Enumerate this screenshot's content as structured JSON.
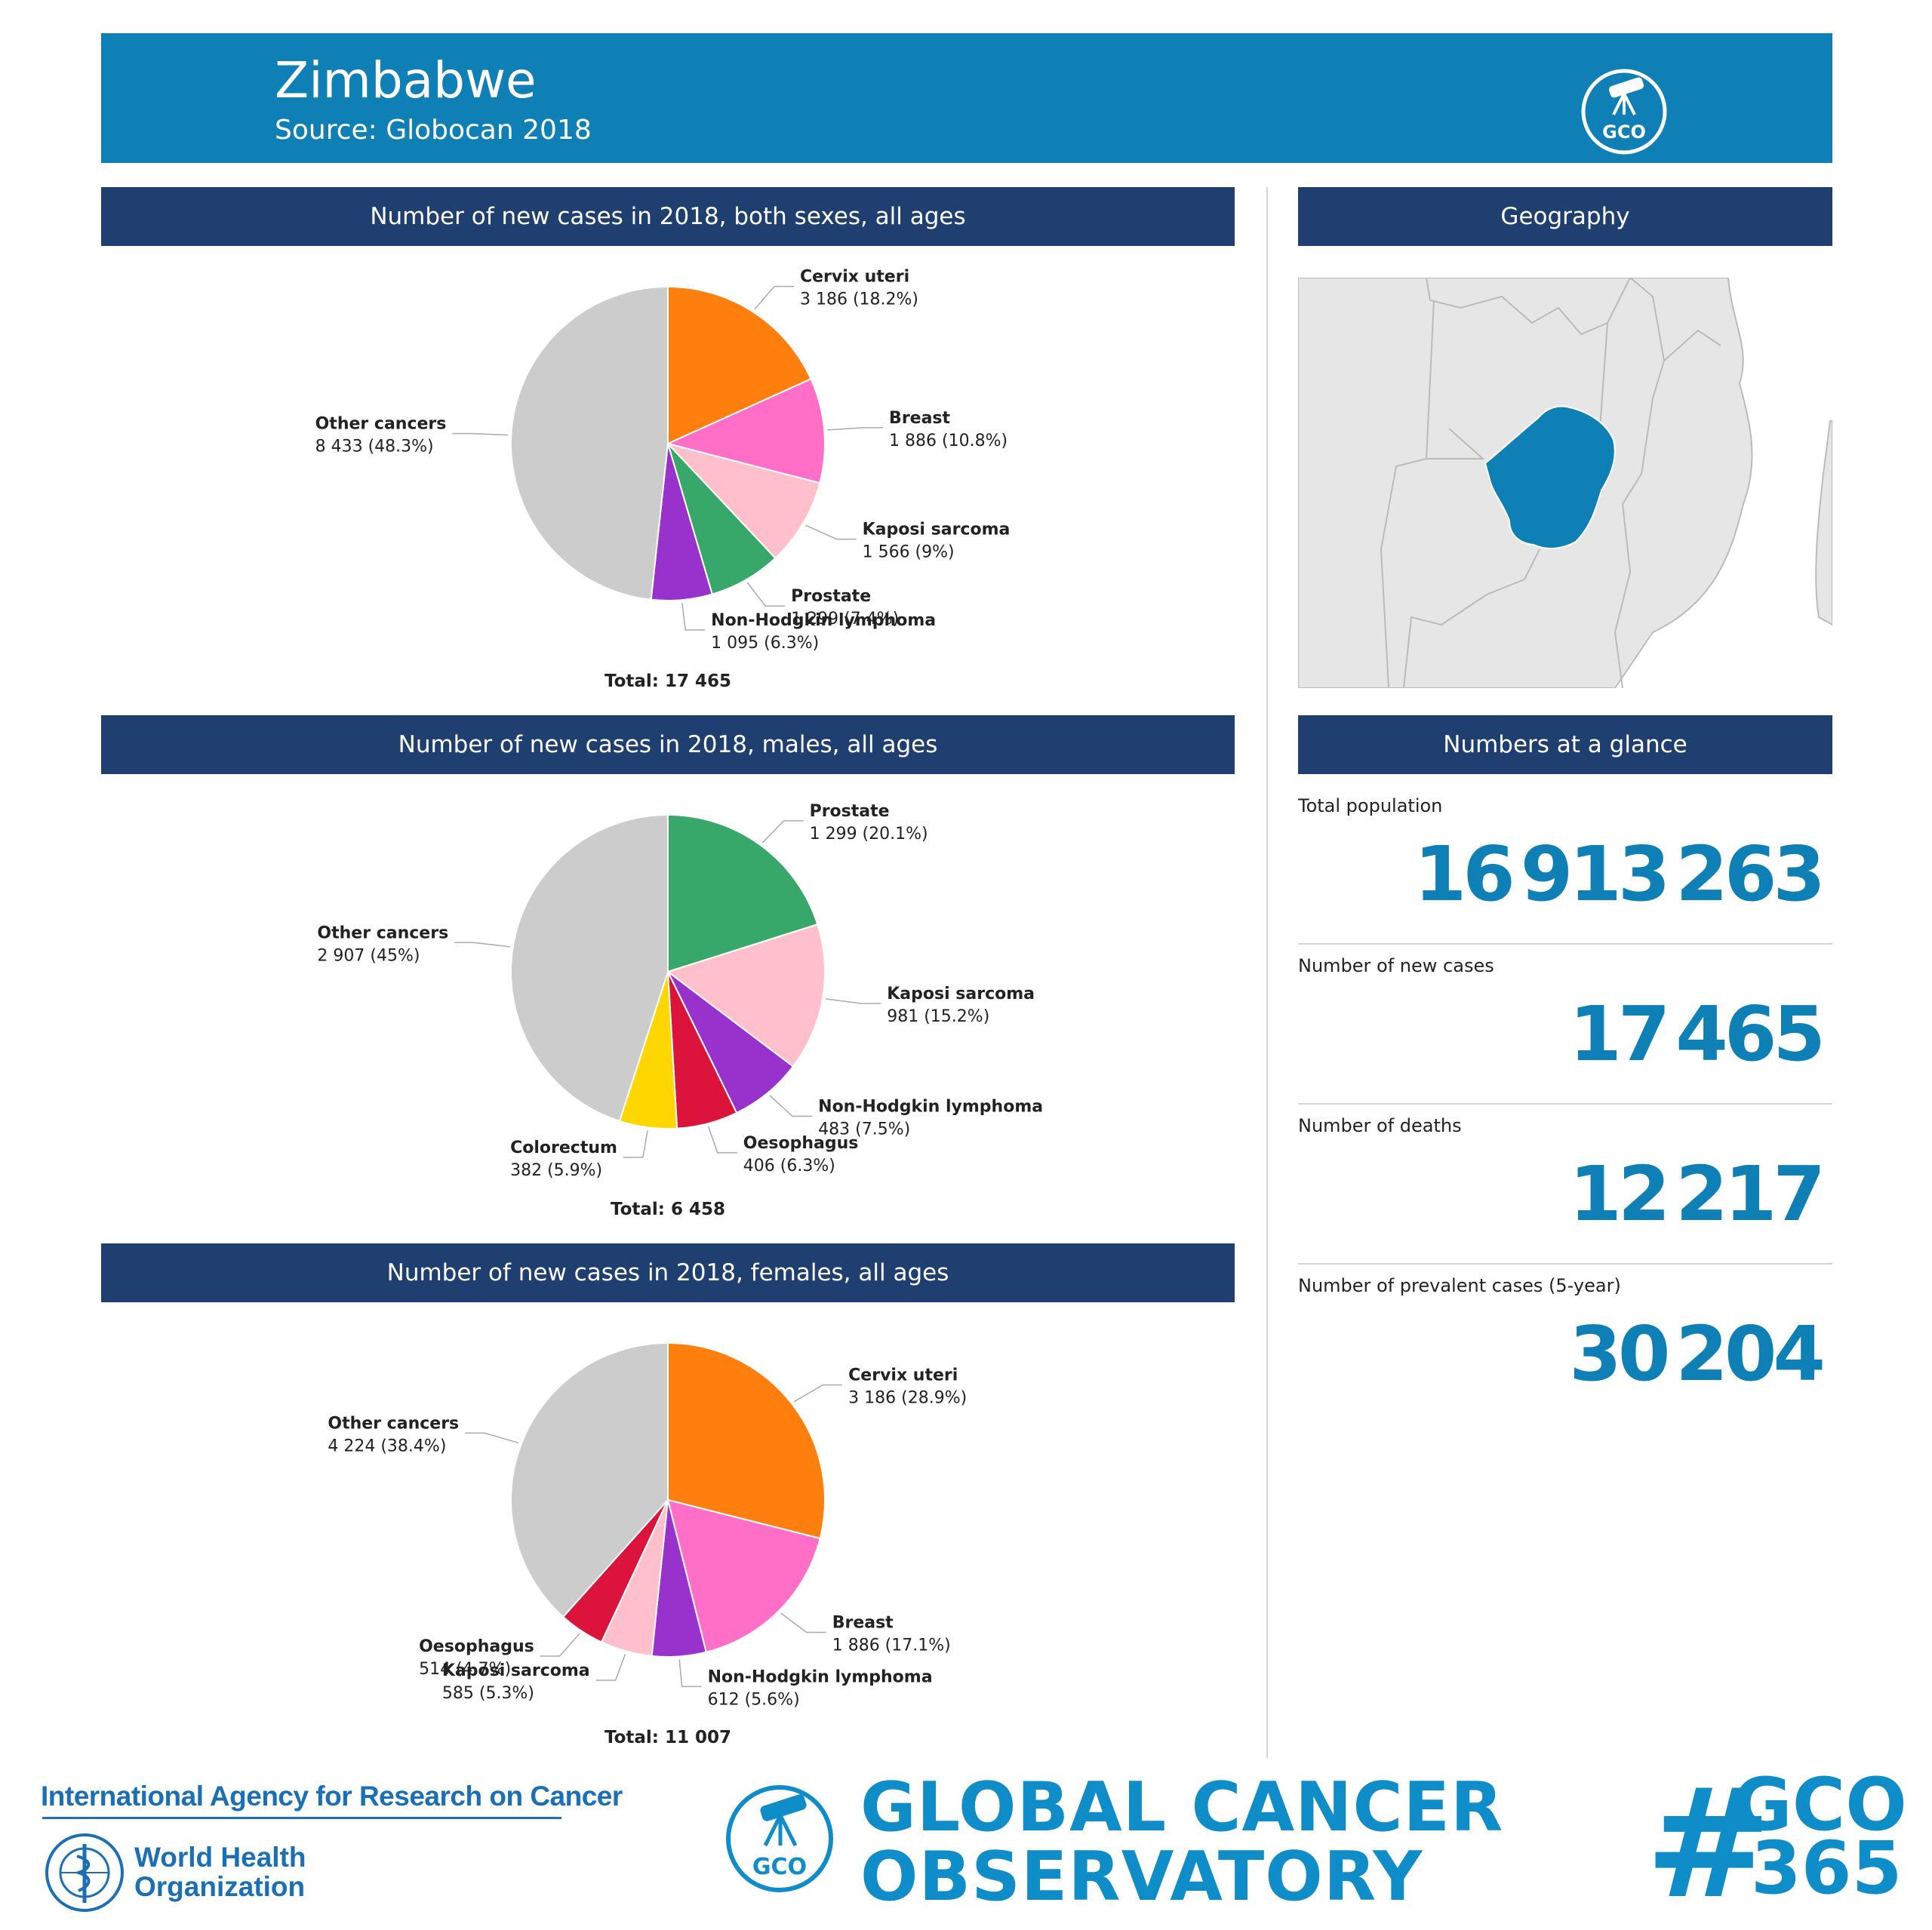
{
  "header": {
    "country": "Zimbabwe",
    "source": "Source: Globocan 2018",
    "logo_text": "GCO"
  },
  "sections": {
    "both": "Number of new cases in 2018, both sexes, all ages",
    "males": "Number of new cases in 2018, males, all ages",
    "females": "Number of new cases in 2018, females, all ages",
    "geography": "Geography",
    "glance": "Numbers at a glance"
  },
  "colors": {
    "header_blue": "#0e80b6",
    "bar_navy": "#1e3f6f",
    "map_highlight": "#0e80b6",
    "map_land": "#e6e6e6"
  },
  "chart_data": [
    {
      "id": "both",
      "type": "pie",
      "title": "Number of new cases in 2018, both sexes, all ages",
      "total_label": "Total: 17 465",
      "slices": [
        {
          "name": "Cervix uteri",
          "value_label": "3 186 (18.2%)",
          "value": 3186,
          "percent": 18.2,
          "color": "#ff7f0e"
        },
        {
          "name": "Breast",
          "value_label": "1 886 (10.8%)",
          "value": 1886,
          "percent": 10.8,
          "color": "#ff6ec7"
        },
        {
          "name": "Kaposi sarcoma",
          "value_label": "1 566 (9%)",
          "value": 1566,
          "percent": 9.0,
          "color": "#ffc0cb"
        },
        {
          "name": "Prostate",
          "value_label": "1 299 (7.4%)",
          "value": 1299,
          "percent": 7.4,
          "color": "#38a86a"
        },
        {
          "name": "Non-Hodgkin lymphoma",
          "value_label": "1 095 (6.3%)",
          "value": 1095,
          "percent": 6.3,
          "color": "#9932cc"
        },
        {
          "name": "Other cancers",
          "value_label": "8 433 (48.3%)",
          "value": 8433,
          "percent": 48.3,
          "color": "#cccccc"
        }
      ]
    },
    {
      "id": "males",
      "type": "pie",
      "title": "Number of new cases in 2018, males, all ages",
      "total_label": "Total: 6 458",
      "slices": [
        {
          "name": "Prostate",
          "value_label": "1 299 (20.1%)",
          "value": 1299,
          "percent": 20.1,
          "color": "#38a86a"
        },
        {
          "name": "Kaposi sarcoma",
          "value_label": "981 (15.2%)",
          "value": 981,
          "percent": 15.2,
          "color": "#ffc0cb"
        },
        {
          "name": "Non-Hodgkin lymphoma",
          "value_label": "483 (7.5%)",
          "value": 483,
          "percent": 7.5,
          "color": "#9932cc"
        },
        {
          "name": "Oesophagus",
          "value_label": "406 (6.3%)",
          "value": 406,
          "percent": 6.3,
          "color": "#dc143c"
        },
        {
          "name": "Colorectum",
          "value_label": "382 (5.9%)",
          "value": 382,
          "percent": 5.9,
          "color": "#ffd700"
        },
        {
          "name": "Other cancers",
          "value_label": "2 907 (45%)",
          "value": 2907,
          "percent": 45.0,
          "color": "#cccccc"
        }
      ]
    },
    {
      "id": "females",
      "type": "pie",
      "title": "Number of new cases in 2018, females, all ages",
      "total_label": "Total: 11 007",
      "slices": [
        {
          "name": "Cervix uteri",
          "value_label": "3 186 (28.9%)",
          "value": 3186,
          "percent": 28.9,
          "color": "#ff7f0e"
        },
        {
          "name": "Breast",
          "value_label": "1 886 (17.1%)",
          "value": 1886,
          "percent": 17.1,
          "color": "#ff6ec7"
        },
        {
          "name": "Non-Hodgkin lymphoma",
          "value_label": "612 (5.6%)",
          "value": 612,
          "percent": 5.6,
          "color": "#9932cc"
        },
        {
          "name": "Kaposi sarcoma",
          "value_label": "585 (5.3%)",
          "value": 585,
          "percent": 5.3,
          "color": "#ffc0cb"
        },
        {
          "name": "Oesophagus",
          "value_label": "514 (4.7%)",
          "value": 514,
          "percent": 4.7,
          "color": "#dc143c"
        },
        {
          "name": "Other cancers",
          "value_label": "4 224 (38.4%)",
          "value": 4224,
          "percent": 38.4,
          "color": "#cccccc"
        }
      ]
    }
  ],
  "glance": [
    {
      "label": "Total population",
      "value": "16 913 263"
    },
    {
      "label": "Number of new cases",
      "value": "17 465"
    },
    {
      "label": "Number of deaths",
      "value": "12 217"
    },
    {
      "label": "Number of prevalent cases (5-year)",
      "value": "30 204"
    }
  ],
  "footer": {
    "iarc": "International Agency for Research on Cancer",
    "who_line1": "World Health",
    "who_line2": "Organization",
    "gco_line1": "GLOBAL CANCER",
    "gco_line2": "OBSERVATORY",
    "gco_badge": "GCO",
    "hash": "#",
    "hashtag_line1": "GCO",
    "hashtag_line2": "365"
  }
}
